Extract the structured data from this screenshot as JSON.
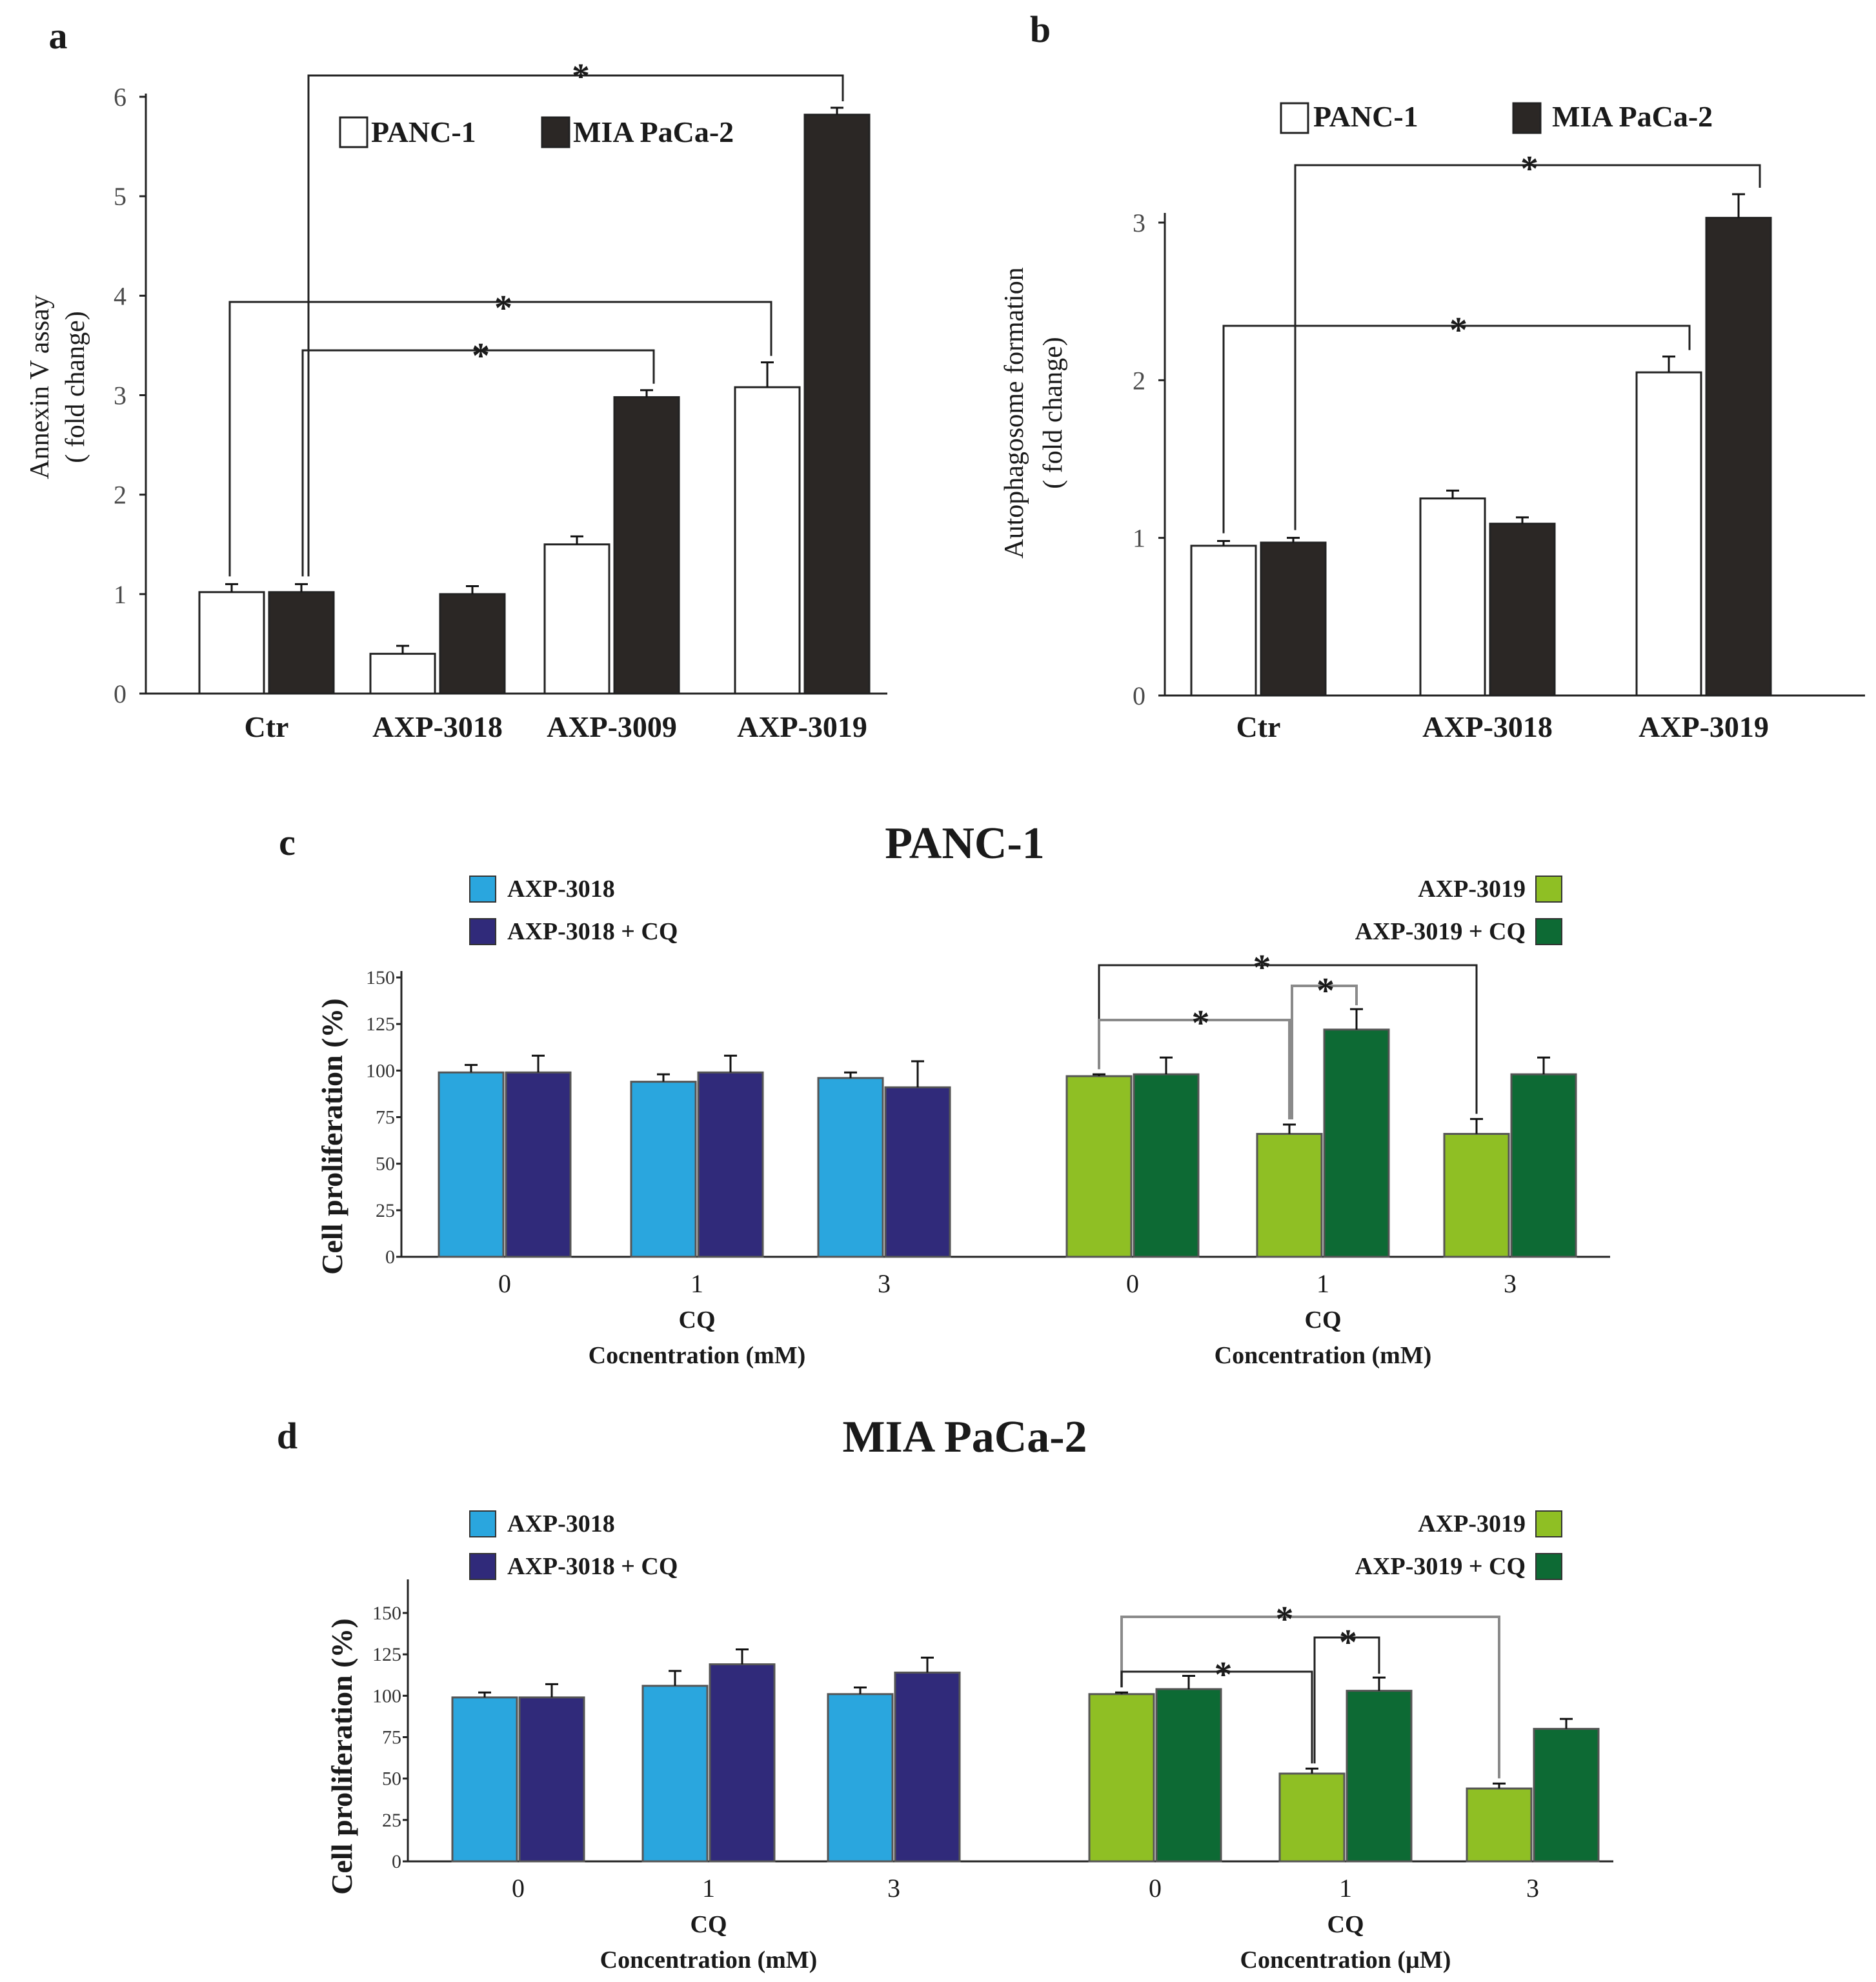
{
  "colors": {
    "panc": "#ffffff",
    "mia": "#2b2725",
    "axp3018": "#2aa6de",
    "axp3018cq": "#302a7a",
    "axp3019": "#8fbf24",
    "axp3019cq": "#0d6a34"
  },
  "chart_data": [
    {
      "id": "a",
      "panel_label": "a",
      "type": "bar",
      "title": "",
      "ylabel_line1": "Annexin V assay",
      "ylabel_line2": "( fold change)",
      "xlabel": "",
      "ylim": [
        0,
        6
      ],
      "yticks": [
        "0",
        "1",
        "2",
        "3",
        "4",
        "5",
        "6"
      ],
      "categories": [
        "Ctr",
        "AXP-3018",
        "AXP-3009",
        "AXP-3019"
      ],
      "series": [
        {
          "name": "PANC-1",
          "values": [
            1.02,
            0.4,
            1.5,
            3.08
          ],
          "errors": [
            0.08,
            0.08,
            0.08,
            0.25
          ]
        },
        {
          "name": "MIA PaCa-2",
          "values": [
            1.02,
            1.0,
            2.98,
            5.82
          ],
          "errors": [
            0.08,
            0.08,
            0.07,
            0.07
          ]
        }
      ],
      "significance": [
        "*",
        "*",
        "*"
      ]
    },
    {
      "id": "b",
      "panel_label": "b",
      "type": "bar",
      "title": "",
      "ylabel_line1": "Autophagosome formation",
      "ylabel_line2": "( fold change)",
      "xlabel": "",
      "ylim": [
        0,
        3
      ],
      "yticks": [
        "0",
        "1",
        "2",
        "3"
      ],
      "categories": [
        "Ctr",
        "AXP-3018",
        "AXP-3019"
      ],
      "series": [
        {
          "name": "PANC-1",
          "values": [
            0.95,
            1.25,
            2.05
          ],
          "errors": [
            0.03,
            0.05,
            0.1
          ]
        },
        {
          "name": "MIA PaCa-2",
          "values": [
            0.97,
            1.09,
            3.03
          ],
          "errors": [
            0.03,
            0.04,
            0.15
          ]
        }
      ],
      "significance": [
        "*",
        "*"
      ]
    },
    {
      "id": "c",
      "panel_label": "c",
      "type": "bar",
      "title": "PANC-1",
      "ylabel": "Cell proliferation (%)",
      "ylim": [
        0,
        150
      ],
      "yticks": [
        "0",
        "25",
        "50",
        "75",
        "100",
        "125",
        "150"
      ],
      "groups": [
        {
          "categories": [
            "0",
            "1",
            "3"
          ],
          "xlabel_line1": "CQ",
          "xlabel_line2": "Cocnentration (mM)"
        },
        {
          "categories": [
            "0",
            "1",
            "3"
          ],
          "xlabel_line1": "CQ",
          "xlabel_line2": "Concentration (mM)"
        }
      ],
      "series": [
        {
          "name": "AXP-3018",
          "values": [
            99,
            94,
            96
          ],
          "errors": [
            4,
            4,
            3
          ]
        },
        {
          "name": "AXP-3018 + CQ",
          "values": [
            99,
            99,
            91
          ],
          "errors": [
            9,
            9,
            14
          ]
        },
        {
          "name": "AXP-3019",
          "values": [
            97,
            66,
            66
          ],
          "errors": [
            1,
            5,
            8
          ]
        },
        {
          "name": "AXP-3019 + CQ",
          "values": [
            98,
            122,
            98
          ],
          "errors": [
            9,
            11,
            9
          ]
        }
      ],
      "significance": [
        "*",
        "*",
        "*"
      ]
    },
    {
      "id": "d",
      "panel_label": "d",
      "type": "bar",
      "title": "MIA PaCa-2",
      "ylabel": "Cell proliferation (%)",
      "ylim": [
        0,
        150
      ],
      "yticks": [
        "0",
        "25",
        "50",
        "75",
        "100",
        "125",
        "150"
      ],
      "groups": [
        {
          "categories": [
            "0",
            "1",
            "3"
          ],
          "xlabel_line1": "CQ",
          "xlabel_line2": "Concentration (mM)"
        },
        {
          "categories": [
            "0",
            "1",
            "3"
          ],
          "xlabel_line1": "CQ",
          "xlabel_line2": "Concentration (µM)"
        }
      ],
      "series": [
        {
          "name": "AXP-3018",
          "values": [
            99,
            106,
            101
          ],
          "errors": [
            3,
            9,
            4
          ]
        },
        {
          "name": "AXP-3018 + CQ",
          "values": [
            99,
            119,
            114
          ],
          "errors": [
            8,
            9,
            9
          ]
        },
        {
          "name": "AXP-3019",
          "values": [
            101,
            53,
            44
          ],
          "errors": [
            1,
            3,
            3
          ]
        },
        {
          "name": "AXP-3019 + CQ",
          "values": [
            104,
            103,
            80
          ],
          "errors": [
            8,
            8,
            6
          ]
        }
      ],
      "significance": [
        "*",
        "*",
        "*"
      ]
    }
  ]
}
